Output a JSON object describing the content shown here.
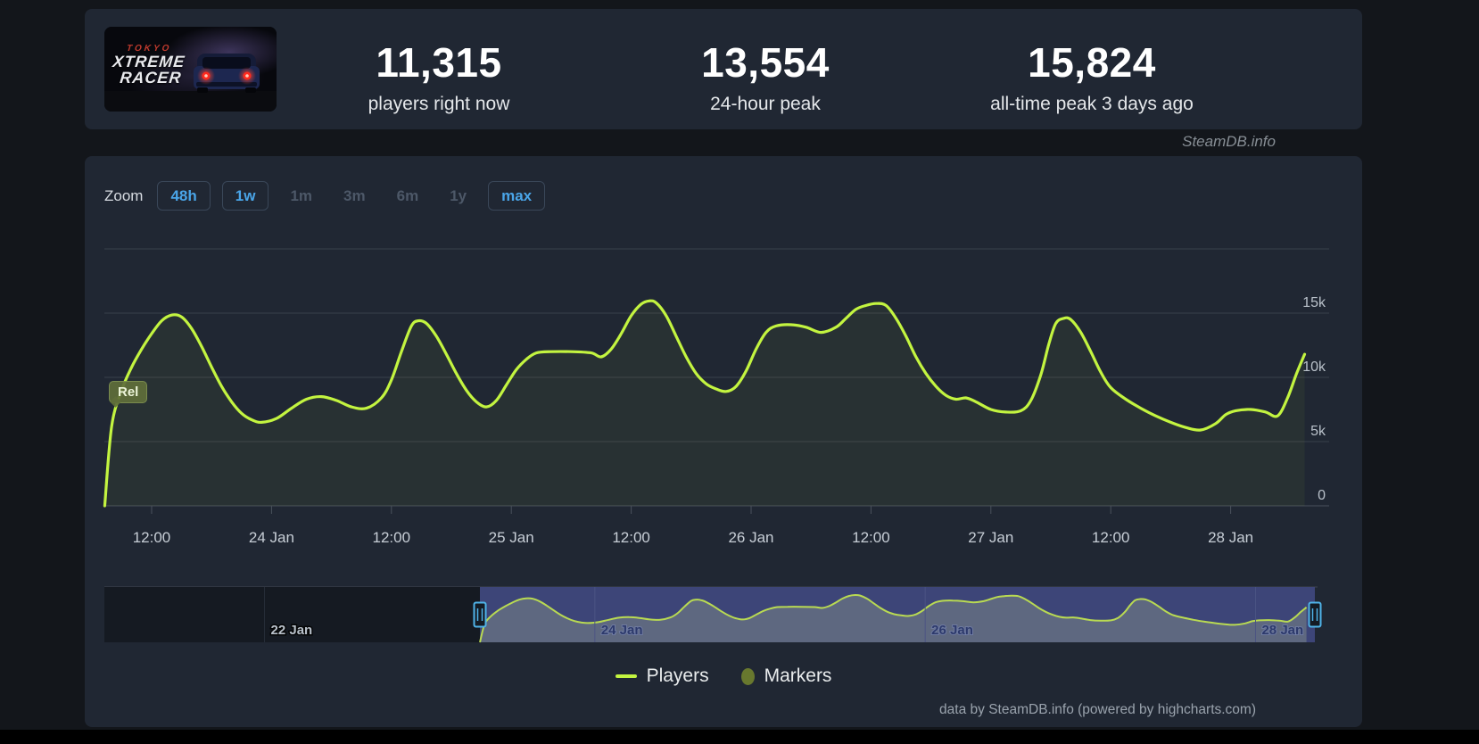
{
  "header": {
    "capsule": {
      "title_top": "TOKYO",
      "title_mid": "XTREME",
      "title_bottom": "RACER"
    },
    "stats": [
      {
        "value": "11,315",
        "label": "players right now"
      },
      {
        "value": "13,554",
        "label": "24-hour peak"
      },
      {
        "value": "15,824",
        "label": "all-time peak 3 days ago"
      }
    ]
  },
  "watermark": "SteamDB.info",
  "toolbar": {
    "label": "Zoom",
    "ranges": [
      {
        "label": "48h",
        "state": "active"
      },
      {
        "label": "1w",
        "state": "active"
      },
      {
        "label": "1m",
        "state": "disabled"
      },
      {
        "label": "3m",
        "state": "disabled"
      },
      {
        "label": "6m",
        "state": "disabled"
      },
      {
        "label": "1y",
        "state": "disabled"
      },
      {
        "label": "max",
        "state": "active"
      }
    ]
  },
  "chart_data": {
    "type": "line",
    "title": "",
    "x_unit": "hours since 23 Jan 00:00",
    "x_ticks": [
      {
        "t": 12,
        "label": "12:00"
      },
      {
        "t": 24,
        "label": "24 Jan"
      },
      {
        "t": 36,
        "label": "12:00"
      },
      {
        "t": 48,
        "label": "25 Jan"
      },
      {
        "t": 60,
        "label": "12:00"
      },
      {
        "t": 72,
        "label": "26 Jan"
      },
      {
        "t": 84,
        "label": "12:00"
      },
      {
        "t": 96,
        "label": "27 Jan"
      },
      {
        "t": 108,
        "label": "12:00"
      },
      {
        "t": 120,
        "label": "28 Jan"
      }
    ],
    "y_ticks": [
      {
        "v": 0,
        "label": "0"
      },
      {
        "v": 5000,
        "label": "5k"
      },
      {
        "v": 10000,
        "label": "10k"
      },
      {
        "v": 15000,
        "label": "15k"
      }
    ],
    "y_max": 20000,
    "series": [
      {
        "name": "Players",
        "color": "#c3f440",
        "points": [
          [
            7.3,
            0
          ],
          [
            8,
            6200
          ],
          [
            9,
            9000
          ],
          [
            10,
            10800
          ],
          [
            11,
            12200
          ],
          [
            12,
            13400
          ],
          [
            13,
            14400
          ],
          [
            14,
            14850
          ],
          [
            15,
            14700
          ],
          [
            16,
            13800
          ],
          [
            17,
            12400
          ],
          [
            18,
            10800
          ],
          [
            19,
            9300
          ],
          [
            20,
            8100
          ],
          [
            21,
            7200
          ],
          [
            22,
            6700
          ],
          [
            23,
            6500
          ],
          [
            24.5,
            6800
          ],
          [
            26,
            7600
          ],
          [
            27.5,
            8300
          ],
          [
            29,
            8500
          ],
          [
            30.5,
            8200
          ],
          [
            32,
            7700
          ],
          [
            33.5,
            7600
          ],
          [
            35,
            8400
          ],
          [
            36,
            9800
          ],
          [
            37,
            12000
          ],
          [
            38,
            14000
          ],
          [
            38.7,
            14400
          ],
          [
            39.5,
            14200
          ],
          [
            40.5,
            13200
          ],
          [
            41.5,
            11800
          ],
          [
            42.5,
            10300
          ],
          [
            43.5,
            9000
          ],
          [
            44.5,
            8100
          ],
          [
            45.5,
            7700
          ],
          [
            46.5,
            8200
          ],
          [
            47.5,
            9400
          ],
          [
            48.5,
            10600
          ],
          [
            49.5,
            11400
          ],
          [
            50.5,
            11900
          ],
          [
            52,
            12000
          ],
          [
            54,
            12000
          ],
          [
            56,
            11900
          ],
          [
            57,
            11600
          ],
          [
            58,
            12200
          ],
          [
            59,
            13400
          ],
          [
            60,
            14800
          ],
          [
            61,
            15700
          ],
          [
            61.8,
            15950
          ],
          [
            62.5,
            15800
          ],
          [
            63.5,
            14800
          ],
          [
            64.5,
            13200
          ],
          [
            65.5,
            11600
          ],
          [
            66.5,
            10300
          ],
          [
            67.5,
            9500
          ],
          [
            68.5,
            9100
          ],
          [
            69.5,
            8900
          ],
          [
            70.5,
            9300
          ],
          [
            71.5,
            10500
          ],
          [
            72.5,
            12200
          ],
          [
            73.5,
            13500
          ],
          [
            74.5,
            14000
          ],
          [
            76,
            14100
          ],
          [
            77.5,
            13900
          ],
          [
            79,
            13500
          ],
          [
            80.5,
            13900
          ],
          [
            81.5,
            14600
          ],
          [
            82.5,
            15300
          ],
          [
            83.5,
            15600
          ],
          [
            84.5,
            15750
          ],
          [
            85.5,
            15600
          ],
          [
            86.5,
            14600
          ],
          [
            87.5,
            13200
          ],
          [
            88.5,
            11600
          ],
          [
            89.5,
            10300
          ],
          [
            90.5,
            9300
          ],
          [
            91.5,
            8600
          ],
          [
            92.5,
            8300
          ],
          [
            93.5,
            8400
          ],
          [
            94.5,
            8100
          ],
          [
            96,
            7500
          ],
          [
            97.5,
            7300
          ],
          [
            99,
            7400
          ],
          [
            100,
            8200
          ],
          [
            101,
            10200
          ],
          [
            101.8,
            12600
          ],
          [
            102.5,
            14200
          ],
          [
            103.3,
            14600
          ],
          [
            104,
            14500
          ],
          [
            105,
            13500
          ],
          [
            106,
            12000
          ],
          [
            107,
            10400
          ],
          [
            108,
            9200
          ],
          [
            109.5,
            8300
          ],
          [
            111,
            7600
          ],
          [
            112.5,
            7000
          ],
          [
            114,
            6500
          ],
          [
            115.5,
            6100
          ],
          [
            117,
            5900
          ],
          [
            118.5,
            6400
          ],
          [
            119.5,
            7100
          ],
          [
            120.5,
            7400
          ],
          [
            122,
            7500
          ],
          [
            123.5,
            7300
          ],
          [
            124.7,
            7000
          ],
          [
            125.7,
            8400
          ],
          [
            126.6,
            10300
          ],
          [
            127.4,
            11800
          ]
        ]
      }
    ],
    "annotations": [
      {
        "t": 7.3,
        "label": "Rel"
      }
    ],
    "navigator": {
      "ticks": [
        {
          "t": -24,
          "label": "22 Jan"
        },
        {
          "t": 24,
          "label": "24 Jan"
        },
        {
          "t": 72,
          "label": "26 Jan"
        },
        {
          "t": 120,
          "label": "28 Jan"
        }
      ],
      "selection_start_t": 7.3
    }
  },
  "legend": [
    {
      "label": "Players",
      "marker": "dash",
      "color": "#c3f440"
    },
    {
      "label": "Markers",
      "marker": "ellipse",
      "color": "#68782e"
    }
  ],
  "footer": "data by SteamDB.info (powered by highcharts.com)"
}
